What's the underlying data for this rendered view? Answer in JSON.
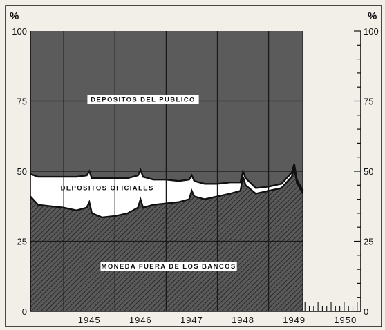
{
  "chart_data": {
    "type": "area",
    "stacked": true,
    "percent_symbol": "%",
    "y_ticks": [
      "0",
      "25",
      "50",
      "75",
      "100"
    ],
    "ylim": [
      0,
      100
    ],
    "x_ticks": [
      "1945",
      "1946",
      "1947",
      "1948",
      "1949",
      "1950"
    ],
    "x_range": [
      1944.35,
      1950.8
    ],
    "data_end": 1949.67,
    "grid": true,
    "colors": {
      "moneda": "#4a4a4a",
      "oficiales": "#ffffff",
      "publico": "#5b5b5b",
      "background": "#f1efe8"
    },
    "series": [
      {
        "name": "MONEDA FUERA DE LOS BANCOS",
        "x": [
          1944.35,
          1944.5,
          1944.75,
          1945.0,
          1945.25,
          1945.45,
          1945.5,
          1945.55,
          1945.75,
          1946.0,
          1946.25,
          1946.45,
          1946.5,
          1946.55,
          1946.75,
          1947.0,
          1947.25,
          1947.45,
          1947.5,
          1947.55,
          1947.75,
          1948.0,
          1948.25,
          1948.45,
          1948.5,
          1948.55,
          1948.75,
          1949.0,
          1949.25,
          1949.45,
          1949.5,
          1949.55,
          1949.67
        ],
        "values": [
          41,
          38,
          37.5,
          37,
          36,
          37,
          39,
          35,
          33.5,
          34,
          35,
          37,
          40,
          37,
          38,
          38.5,
          39,
          40,
          43,
          41,
          40,
          41,
          42,
          43,
          48,
          45,
          42,
          43,
          44,
          48,
          51,
          46,
          42
        ]
      },
      {
        "name": "DEPOSITOS OFICIALES",
        "x": [
          1944.35,
          1944.5,
          1944.75,
          1945.0,
          1945.25,
          1945.45,
          1945.5,
          1945.55,
          1945.75,
          1946.0,
          1946.25,
          1946.45,
          1946.5,
          1946.55,
          1946.75,
          1947.0,
          1947.25,
          1947.45,
          1947.5,
          1947.55,
          1947.75,
          1948.0,
          1948.25,
          1948.45,
          1948.5,
          1948.55,
          1948.75,
          1949.0,
          1949.25,
          1949.45,
          1949.5,
          1949.55,
          1949.67
        ],
        "values": [
          8,
          10,
          10.5,
          11,
          12,
          11.5,
          11,
          12.5,
          14,
          13.5,
          12.5,
          11.5,
          10.5,
          11,
          9,
          8.5,
          7.5,
          7,
          5.5,
          5.5,
          5.5,
          4.5,
          4,
          3,
          2,
          2.5,
          2,
          1.5,
          1.5,
          1.5,
          1.5,
          1,
          1
        ]
      },
      {
        "name": "DEPOSITOS DEL PUBLICO",
        "x": [
          1944.35,
          1944.5,
          1944.75,
          1945.0,
          1945.25,
          1945.45,
          1945.5,
          1945.55,
          1945.75,
          1946.0,
          1946.25,
          1946.45,
          1946.5,
          1946.55,
          1946.75,
          1947.0,
          1947.25,
          1947.45,
          1947.5,
          1947.55,
          1947.75,
          1948.0,
          1948.25,
          1948.45,
          1948.5,
          1948.55,
          1948.75,
          1949.0,
          1949.25,
          1949.45,
          1949.5,
          1949.55,
          1949.67
        ],
        "values": [
          51,
          52,
          52,
          52,
          52,
          51.5,
          50,
          52.5,
          52.5,
          52.5,
          52.5,
          51.5,
          49.5,
          52,
          53,
          53,
          53.5,
          53,
          51.5,
          53.5,
          54.5,
          54.5,
          54,
          54,
          50,
          52.5,
          56,
          55.5,
          54.5,
          50.5,
          47.5,
          53,
          57
        ]
      }
    ]
  }
}
